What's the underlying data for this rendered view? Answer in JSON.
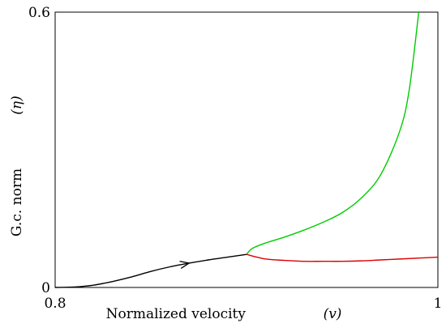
{
  "chart_data": {
    "type": "line",
    "xlabel": "Normalized velocity",
    "xlabel_symbol": "(v)",
    "ylabel": "G.c. norm",
    "ylabel_symbol": "(η)",
    "xlim": [
      0.8,
      1.0
    ],
    "ylim": [
      0,
      0.6
    ],
    "x_ticks": [
      {
        "value": 0.8,
        "label": "0.8"
      },
      {
        "value": 1.0,
        "label": "1"
      }
    ],
    "y_ticks": [
      {
        "value": 0,
        "label": "0"
      },
      {
        "value": 0.6,
        "label": "0.6"
      }
    ],
    "grid": false,
    "series": [
      {
        "color": "#000000",
        "arrow_at": 0.87,
        "points": [
          [
            0.8,
            0.0
          ],
          [
            0.81,
            0.001
          ],
          [
            0.82,
            0.005
          ],
          [
            0.83,
            0.013
          ],
          [
            0.84,
            0.023
          ],
          [
            0.85,
            0.035
          ],
          [
            0.86,
            0.045
          ],
          [
            0.87,
            0.053
          ],
          [
            0.88,
            0.06
          ],
          [
            0.89,
            0.066
          ],
          [
            0.9,
            0.072
          ]
        ]
      },
      {
        "color": "#00cc00",
        "points": [
          [
            0.9,
            0.072
          ],
          [
            0.903,
            0.085
          ],
          [
            0.91,
            0.097
          ],
          [
            0.92,
            0.11
          ],
          [
            0.93,
            0.125
          ],
          [
            0.94,
            0.142
          ],
          [
            0.95,
            0.163
          ],
          [
            0.96,
            0.195
          ],
          [
            0.97,
            0.245
          ],
          [
            0.98,
            0.34
          ],
          [
            0.985,
            0.43
          ],
          [
            0.99,
            0.6
          ]
        ]
      },
      {
        "color": "#dd0000",
        "points": [
          [
            0.9,
            0.072
          ],
          [
            0.91,
            0.062
          ],
          [
            0.92,
            0.059
          ],
          [
            0.93,
            0.057
          ],
          [
            0.94,
            0.057
          ],
          [
            0.95,
            0.057
          ],
          [
            0.96,
            0.058
          ],
          [
            0.97,
            0.06
          ],
          [
            0.98,
            0.062
          ],
          [
            0.99,
            0.064
          ],
          [
            1.0,
            0.066
          ]
        ]
      }
    ]
  }
}
